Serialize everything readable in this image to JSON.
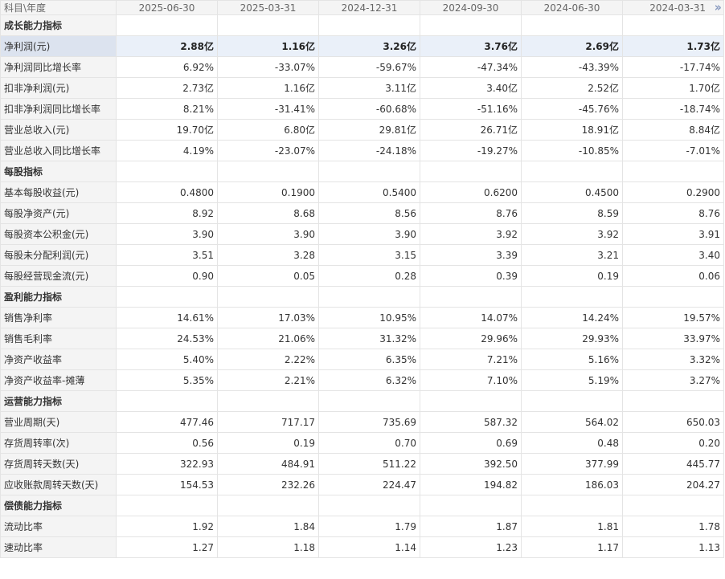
{
  "header": {
    "corner_label": "科目\\年度",
    "dates": [
      "2025-06-30",
      "2025-03-31",
      "2024-12-31",
      "2024-09-30",
      "2024-06-30",
      "2024-03-31"
    ],
    "more_icon": "double-chevron-right-icon"
  },
  "sections": [
    {
      "title": "成长能力指标",
      "rows": [
        {
          "label": "净利润(元)",
          "values": [
            "2.88亿",
            "1.16亿",
            "3.26亿",
            "3.76亿",
            "2.69亿",
            "1.73亿"
          ],
          "highlight": true
        },
        {
          "label": "净利润同比增长率",
          "values": [
            "6.92%",
            "-33.07%",
            "-59.67%",
            "-47.34%",
            "-43.39%",
            "-17.74%"
          ]
        },
        {
          "label": "扣非净利润(元)",
          "values": [
            "2.73亿",
            "1.16亿",
            "3.11亿",
            "3.40亿",
            "2.52亿",
            "1.70亿"
          ]
        },
        {
          "label": "扣非净利润同比增长率",
          "values": [
            "8.21%",
            "-31.41%",
            "-60.68%",
            "-51.16%",
            "-45.76%",
            "-18.74%"
          ]
        },
        {
          "label": "营业总收入(元)",
          "values": [
            "19.70亿",
            "6.80亿",
            "29.81亿",
            "26.71亿",
            "18.91亿",
            "8.84亿"
          ]
        },
        {
          "label": "营业总收入同比增长率",
          "values": [
            "4.19%",
            "-23.07%",
            "-24.18%",
            "-19.27%",
            "-10.85%",
            "-7.01%"
          ]
        }
      ]
    },
    {
      "title": "每股指标",
      "rows": [
        {
          "label": "基本每股收益(元)",
          "values": [
            "0.4800",
            "0.1900",
            "0.5400",
            "0.6200",
            "0.4500",
            "0.2900"
          ]
        },
        {
          "label": "每股净资产(元)",
          "values": [
            "8.92",
            "8.68",
            "8.56",
            "8.76",
            "8.59",
            "8.76"
          ]
        },
        {
          "label": "每股资本公积金(元)",
          "values": [
            "3.90",
            "3.90",
            "3.90",
            "3.92",
            "3.92",
            "3.91"
          ]
        },
        {
          "label": "每股未分配利润(元)",
          "values": [
            "3.51",
            "3.28",
            "3.15",
            "3.39",
            "3.21",
            "3.40"
          ]
        },
        {
          "label": "每股经营现金流(元)",
          "values": [
            "0.90",
            "0.05",
            "0.28",
            "0.39",
            "0.19",
            "0.06"
          ]
        }
      ]
    },
    {
      "title": "盈利能力指标",
      "rows": [
        {
          "label": "销售净利率",
          "values": [
            "14.61%",
            "17.03%",
            "10.95%",
            "14.07%",
            "14.24%",
            "19.57%"
          ]
        },
        {
          "label": "销售毛利率",
          "values": [
            "24.53%",
            "21.06%",
            "31.32%",
            "29.96%",
            "29.93%",
            "33.97%"
          ]
        },
        {
          "label": "净资产收益率",
          "values": [
            "5.40%",
            "2.22%",
            "6.35%",
            "7.21%",
            "5.16%",
            "3.32%"
          ]
        },
        {
          "label": "净资产收益率-摊薄",
          "values": [
            "5.35%",
            "2.21%",
            "6.32%",
            "7.10%",
            "5.19%",
            "3.27%"
          ]
        }
      ]
    },
    {
      "title": "运营能力指标",
      "rows": [
        {
          "label": "营业周期(天)",
          "values": [
            "477.46",
            "717.17",
            "735.69",
            "587.32",
            "564.02",
            "650.03"
          ]
        },
        {
          "label": "存货周转率(次)",
          "values": [
            "0.56",
            "0.19",
            "0.70",
            "0.69",
            "0.48",
            "0.20"
          ]
        },
        {
          "label": "存货周转天数(天)",
          "values": [
            "322.93",
            "484.91",
            "511.22",
            "392.50",
            "377.99",
            "445.77"
          ]
        },
        {
          "label": "应收账款周转天数(天)",
          "values": [
            "154.53",
            "232.26",
            "224.47",
            "194.82",
            "186.03",
            "204.27"
          ]
        }
      ]
    },
    {
      "title": "偿债能力指标",
      "rows": [
        {
          "label": "流动比率",
          "values": [
            "1.92",
            "1.84",
            "1.79",
            "1.87",
            "1.81",
            "1.78"
          ]
        },
        {
          "label": "速动比率",
          "values": [
            "1.27",
            "1.18",
            "1.14",
            "1.23",
            "1.17",
            "1.13"
          ]
        }
      ]
    }
  ]
}
